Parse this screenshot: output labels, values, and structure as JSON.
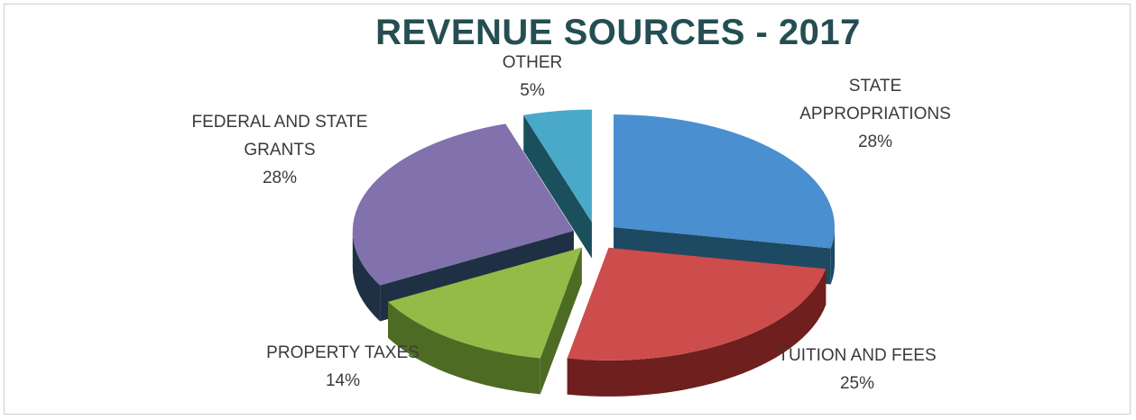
{
  "chart_data": {
    "type": "pie",
    "title": "REVENUE SOURCES - 2017",
    "slices": [
      {
        "label": "STATE APPROPRIATIONS",
        "value": 28,
        "value_label": "28%",
        "color": "#4a8fcf",
        "side_color": "#1d4a62"
      },
      {
        "label": "TUITION AND FEES",
        "value": 25,
        "value_label": "25%",
        "color": "#cd4d4c",
        "side_color": "#6e1f1e"
      },
      {
        "label": "PROPERTY TAXES",
        "value": 14,
        "value_label": "14%",
        "color": "#93bb47",
        "side_color": "#4e6b24"
      },
      {
        "label": "FEDERAL AND STATE GRANTS",
        "value": 28,
        "value_label": "28%",
        "color": "#8171ad",
        "side_color": "#1f3044"
      },
      {
        "label": "OTHER",
        "value": 5,
        "value_label": "5%",
        "color": "#4aa9c9",
        "side_color": "#1b4f5c"
      }
    ],
    "style": "3d-exploded"
  }
}
